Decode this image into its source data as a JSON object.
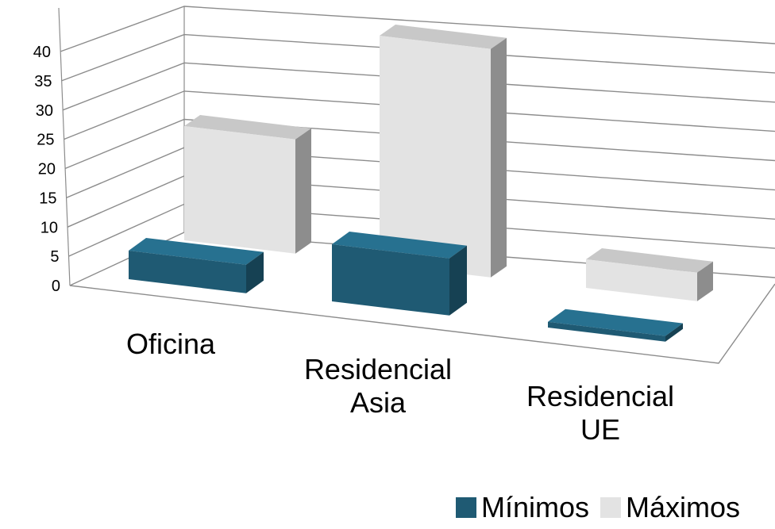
{
  "chart_data": {
    "type": "bar",
    "categories": [
      "Oficina",
      "Residencial\nAsia",
      "Residencial\nUE"
    ],
    "series": [
      {
        "name": "Mínimos",
        "values": [
          5,
          10,
          1
        ],
        "color": "#1f5a73"
      },
      {
        "name": "Máximos",
        "values": [
          20,
          40,
          5
        ],
        "color": "#e3e3e3"
      }
    ],
    "ylim": [
      0,
      40
    ],
    "yticks": [
      0,
      5,
      10,
      15,
      20,
      25,
      30,
      35,
      40
    ],
    "grid": true,
    "legend": "bottom-right",
    "style": "3d-column",
    "title": "",
    "xlabel": "",
    "ylabel": ""
  }
}
